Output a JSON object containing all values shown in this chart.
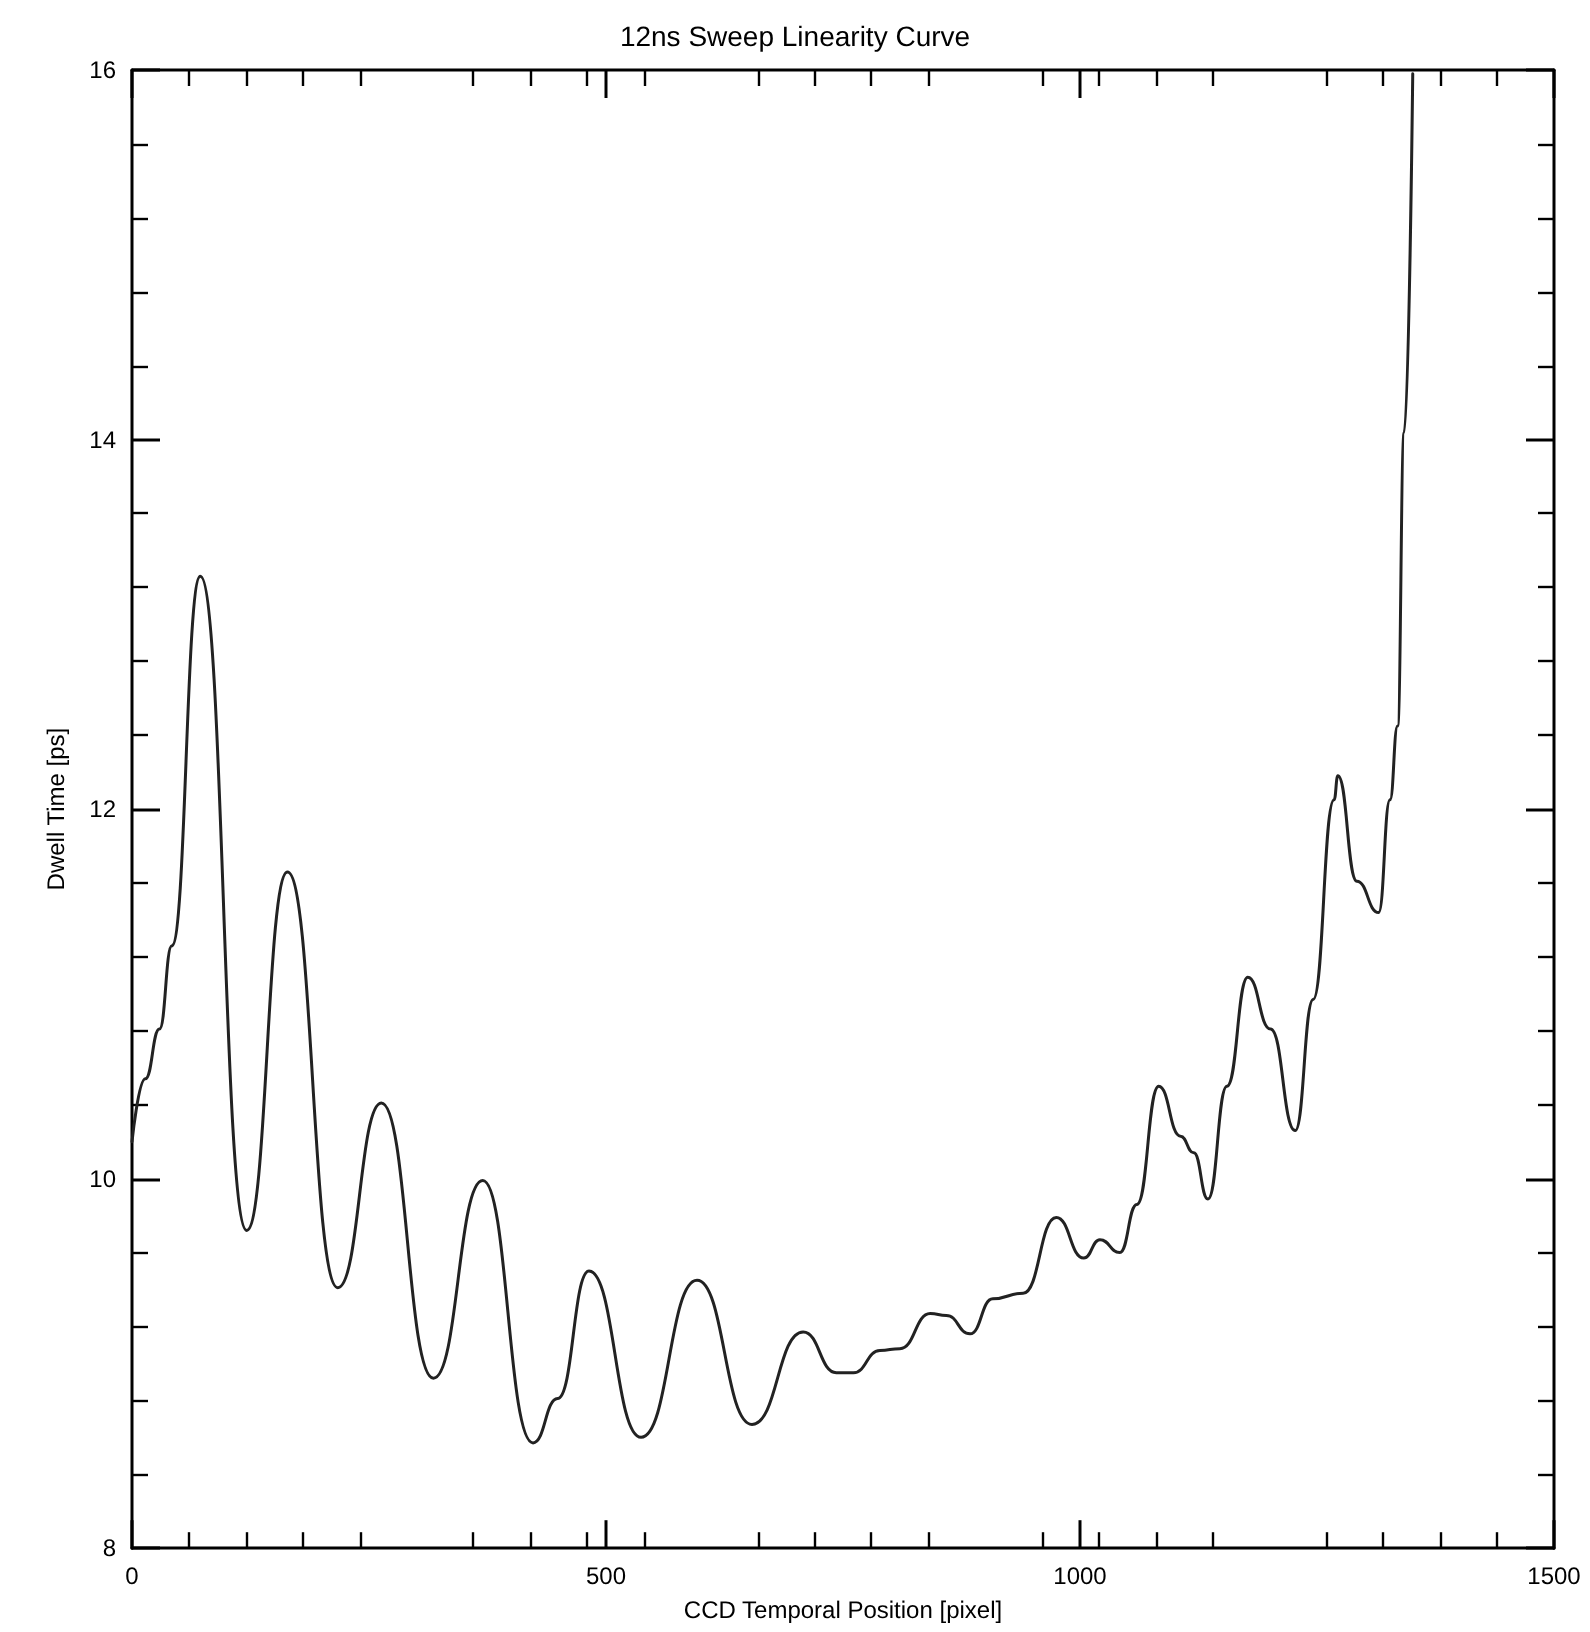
{
  "chart_data": {
    "type": "line",
    "title": "12ns Sweep Linearity Curve",
    "xlabel": "CCD Temporal Position [pixel]",
    "ylabel": "Dwell Time [ps]",
    "xlim": [
      0,
      1500
    ],
    "xticks": [
      0,
      500,
      1000,
      1500
    ],
    "ylim": [
      8,
      16
    ],
    "yticks": [
      8,
      10,
      12,
      14,
      16
    ],
    "grid": false,
    "marker": "none",
    "line_style": "solid",
    "series": [
      {
        "color": "#222222",
        "x": [
          0,
          14,
          29,
          42,
          72,
          121,
          164,
          217,
          263,
          318,
          370,
          423,
          449,
          482,
          537,
          596,
          654,
          708,
          743,
          761,
          789,
          810,
          842,
          859,
          884,
          908,
          940,
          975,
          1004,
          1021,
          1042,
          1060,
          1083,
          1106,
          1120,
          1135,
          1155,
          1177,
          1201,
          1227,
          1246,
          1268,
          1272,
          1292,
          1315,
          1327,
          1335,
          1342,
          1351
        ],
        "values": [
          10.2,
          10.54,
          10.81,
          11.26,
          13.26,
          9.72,
          11.66,
          9.41,
          10.41,
          8.92,
          9.99,
          8.57,
          8.81,
          9.5,
          8.6,
          9.45,
          8.67,
          9.17,
          8.95,
          8.95,
          9.07,
          9.08,
          9.27,
          9.26,
          9.16,
          9.35,
          9.38,
          9.79,
          9.57,
          9.67,
          9.6,
          9.86,
          10.5,
          10.23,
          10.14,
          9.89,
          10.5,
          11.09,
          10.81,
          10.26,
          10.97,
          12.05,
          12.18,
          11.61,
          11.44,
          12.05,
          12.45,
          14.04,
          15.98
        ]
      }
    ]
  }
}
